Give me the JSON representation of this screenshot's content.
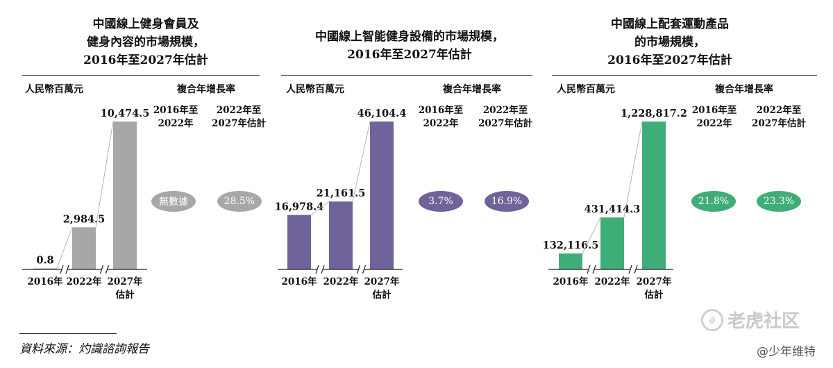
{
  "chart_data": [
    {
      "type": "bar",
      "title": "中國線上健身會員及\n健身內容的市場規模，\n2016年至2027年估計",
      "ylabel": "人民幣百萬元",
      "categories": [
        "2016年",
        "2022年",
        "2027年\n估計"
      ],
      "values": [
        0.8,
        2984.5,
        10474.5
      ],
      "value_labels": [
        "0.8",
        "2,984.5",
        "10,474.5"
      ],
      "bar_color": "#a5a8a7",
      "cagr_title": "複合年增長率",
      "cagr_periods": [
        "2016年至\n2022年",
        "2022年至\n2027年估計"
      ],
      "cagr_values": [
        "無數據",
        "28.5%"
      ]
    },
    {
      "type": "bar",
      "title": "中國線上智能健身設備的市場規模，\n2016年至2027年估計",
      "ylabel": "人民幣百萬元",
      "categories": [
        "2016年",
        "2022年",
        "2027年\n估計"
      ],
      "values": [
        16978.4,
        21161.5,
        46104.4
      ],
      "value_labels": [
        "16,978.4",
        "21,161.5",
        "46,104.4"
      ],
      "bar_color": "#6f6399",
      "cagr_title": "複合年增長率",
      "cagr_periods": [
        "2016年至\n2022年",
        "2022年至\n2027年估計"
      ],
      "cagr_values": [
        "3.7%",
        "16.9%"
      ]
    },
    {
      "type": "bar",
      "title": "中國線上配套運動產品\n的市場規模，\n2016年至2027年估計",
      "ylabel": "人民幣百萬元",
      "categories": [
        "2016年",
        "2022年",
        "2027年\n估計"
      ],
      "values": [
        132116.5,
        431414.3,
        1228817.2
      ],
      "value_labels": [
        "132,116.5",
        "431,414.3",
        "1,228,817.2"
      ],
      "bar_color": "#3fad78",
      "cagr_title": "複合年增長率",
      "cagr_periods": [
        "2016年至\n2022年",
        "2022年至\n2027年估計"
      ],
      "cagr_values": [
        "21.8%",
        "23.3%"
      ]
    }
  ],
  "source": "資料來源：灼識諮詢報告",
  "watermark": {
    "brand": "老虎社区",
    "logo_glyph": "∂",
    "user": "@少年维特"
  }
}
